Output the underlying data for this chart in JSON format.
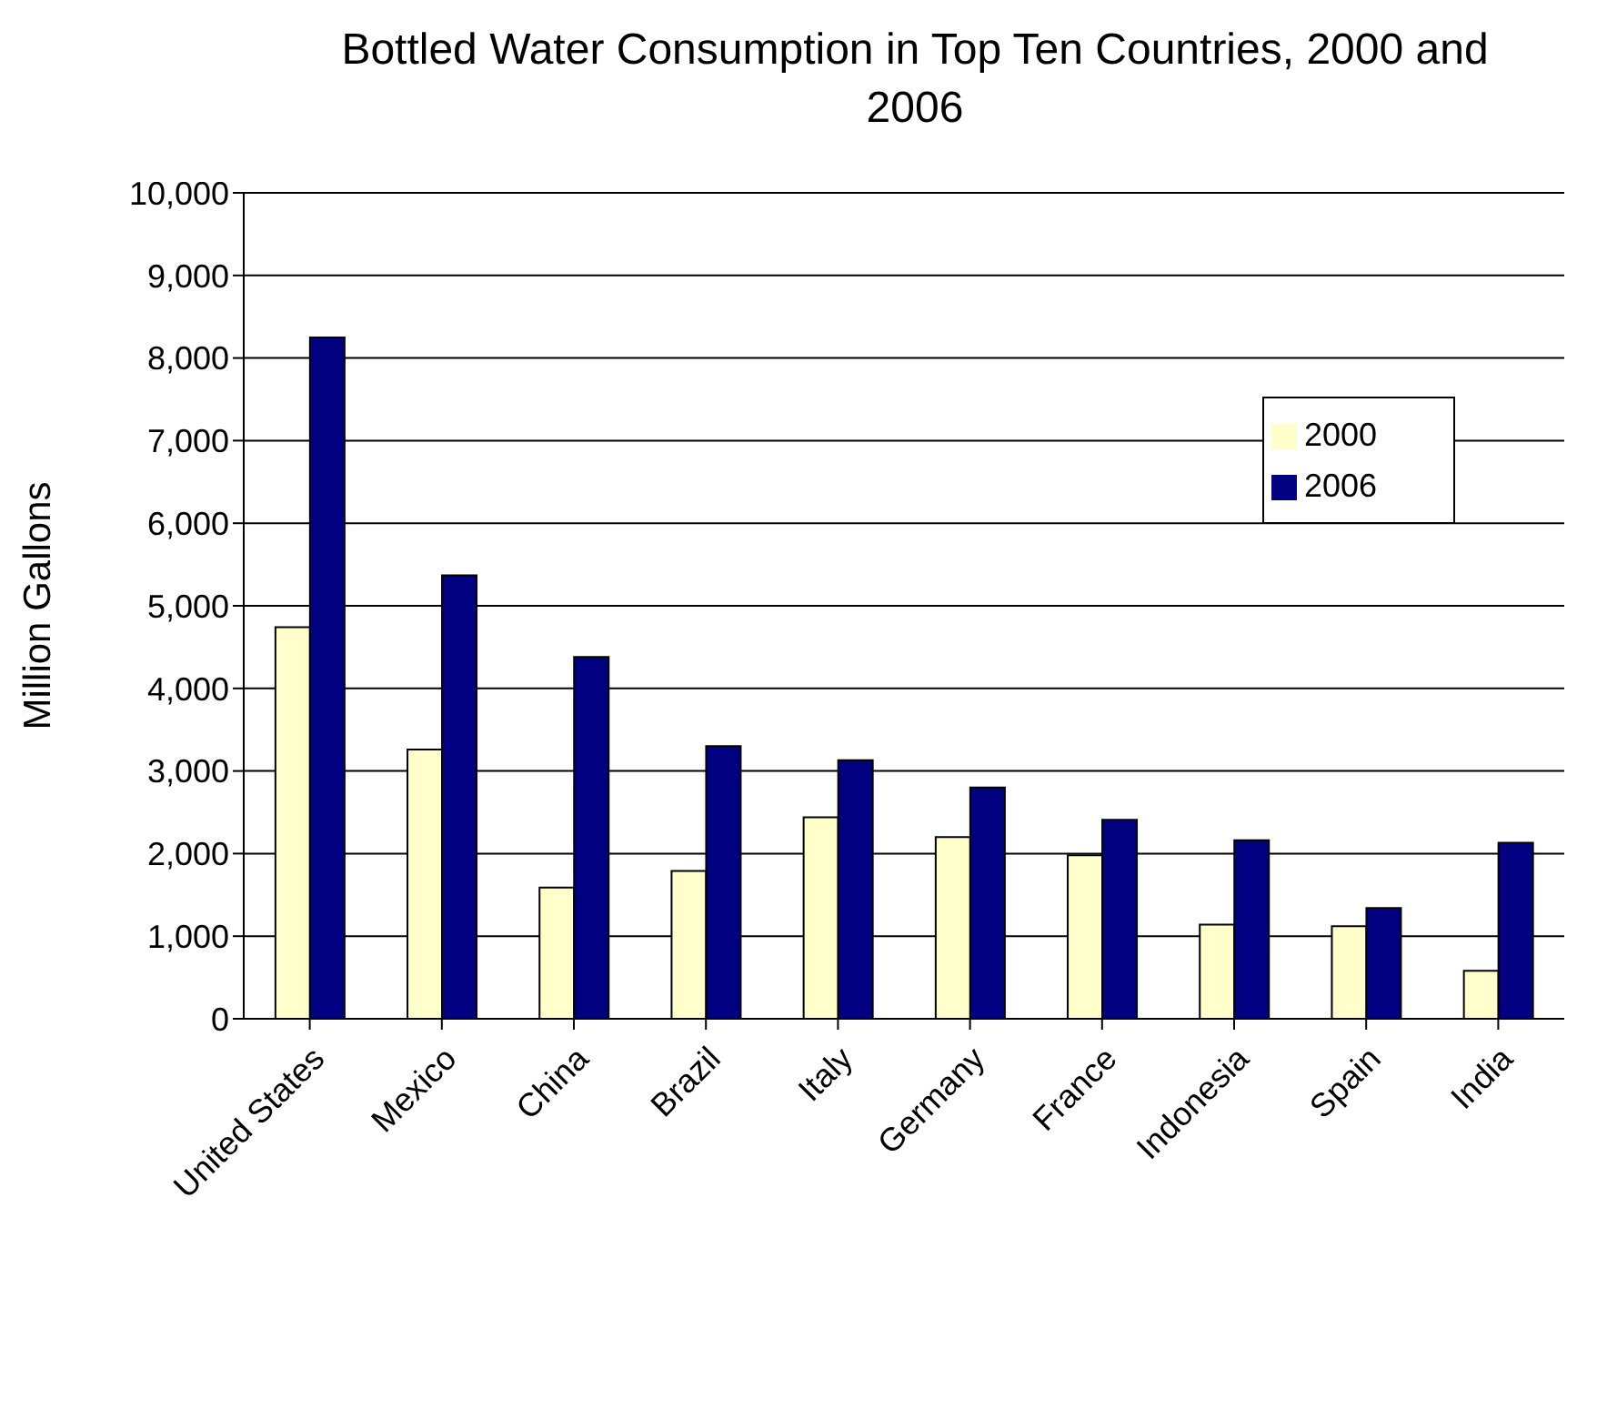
{
  "chart_data": {
    "type": "bar",
    "title": "Bottled Water Consumption in Top Ten Countries, 2000 and 2006",
    "ylabel": "Million Gallons",
    "categories": [
      "United States",
      "Mexico",
      "China",
      "Brazil",
      "Italy",
      "Germany",
      "France",
      "Indonesia",
      "Spain",
      "India"
    ],
    "series": [
      {
        "name": "2000",
        "color": "#ffffcc",
        "values": [
          4740,
          3260,
          1590,
          1790,
          2440,
          2200,
          1980,
          1140,
          1120,
          580
        ]
      },
      {
        "name": "2006",
        "color": "#000080",
        "values": [
          8250,
          5370,
          4380,
          3300,
          3130,
          2800,
          2410,
          2160,
          1340,
          2130
        ]
      }
    ],
    "ylim": [
      0,
      10000
    ],
    "yticks": [
      {
        "value": 0,
        "label": "0"
      },
      {
        "value": 1000,
        "label": "1,000"
      },
      {
        "value": 2000,
        "label": "2,000"
      },
      {
        "value": 3000,
        "label": "3,000"
      },
      {
        "value": 4000,
        "label": "4,000"
      },
      {
        "value": 5000,
        "label": "5,000"
      },
      {
        "value": 6000,
        "label": "6,000"
      },
      {
        "value": 7000,
        "label": "7,000"
      },
      {
        "value": 8000,
        "label": "8,000"
      },
      {
        "value": 9000,
        "label": "9,000"
      },
      {
        "value": 10000,
        "label": "10,000"
      }
    ],
    "grid": "y",
    "legend": "top right"
  }
}
